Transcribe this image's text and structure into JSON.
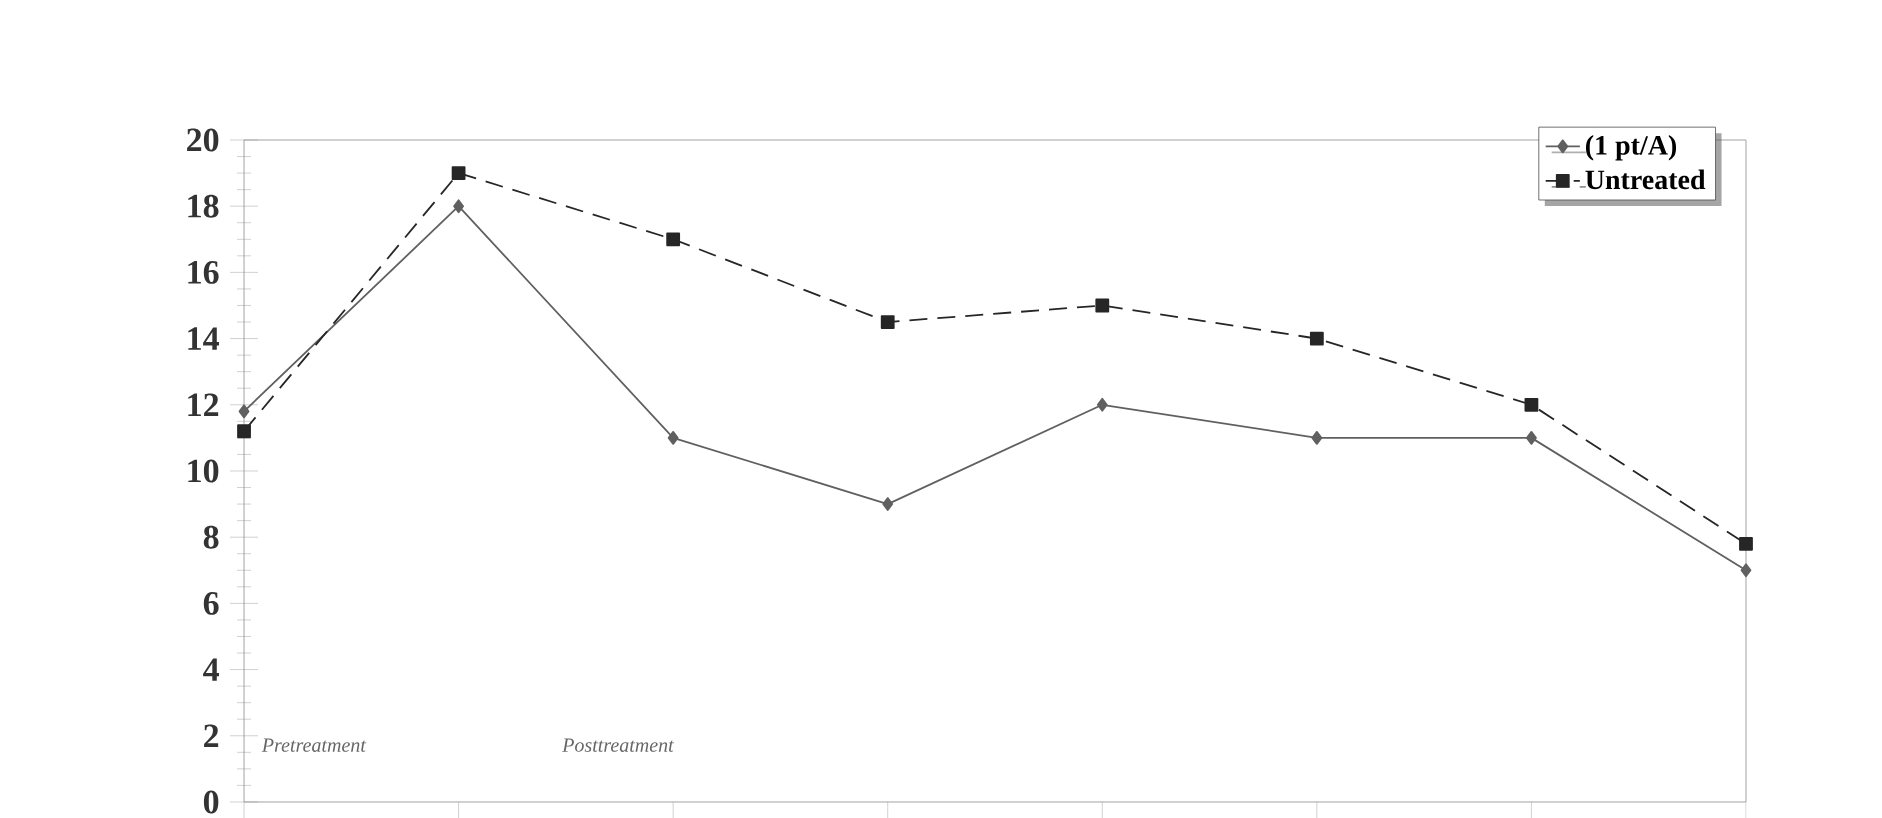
{
  "chart_data": {
    "type": "line",
    "categories": [
      null,
      null,
      null,
      null,
      null,
      null,
      null,
      null
    ],
    "series": [
      {
        "name": "(1 pt/A)",
        "color": "#606060",
        "marker": "diamond",
        "line_style": "solid",
        "values": [
          11.8,
          18,
          11,
          9,
          12,
          11,
          11,
          7
        ]
      },
      {
        "name": "Untreated",
        "color": "#262626",
        "marker": "square",
        "line_style": "dashed",
        "values": [
          11.2,
          19,
          17,
          14.5,
          15,
          14,
          12,
          7.8
        ]
      }
    ],
    "ylim": [
      0,
      20
    ],
    "yticks": [
      0,
      2,
      4,
      6,
      8,
      10,
      12,
      14,
      16,
      18,
      20
    ],
    "grid": false,
    "legend": "top right",
    "tick_labels": "y",
    "annotations": [
      "Pretreatment",
      "Posttreatment"
    ]
  }
}
